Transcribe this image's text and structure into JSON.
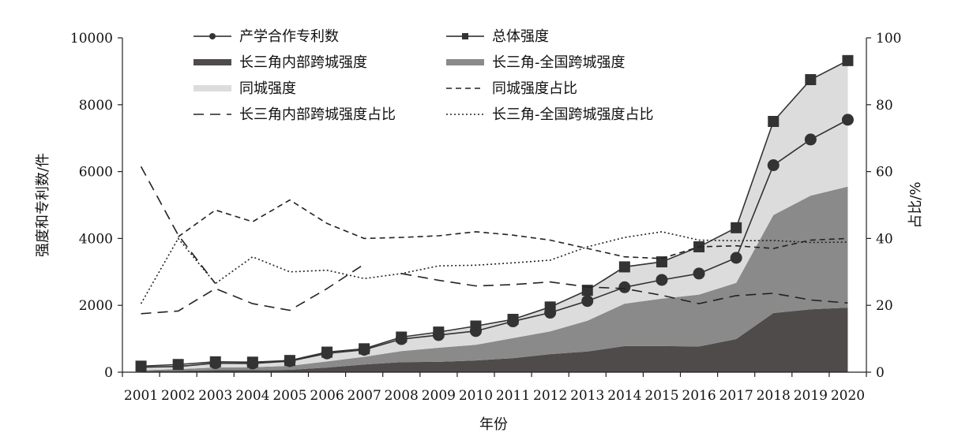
{
  "chart_data": {
    "type": "line",
    "categories": [
      "2001",
      "2002",
      "2003",
      "2004",
      "2005",
      "2006",
      "2007",
      "2008",
      "2009",
      "2010",
      "2011",
      "2012",
      "2013",
      "2014",
      "2015",
      "2016",
      "2017",
      "2018",
      "2019",
      "2020"
    ],
    "xlabel": "年份",
    "ylabel": "强度和专利数/件",
    "ylabel_right": "占比/%",
    "ylim": [
      0,
      10000
    ],
    "ylim_right": [
      0,
      100
    ],
    "yticks": [
      "0",
      "2000",
      "4000",
      "6000",
      "8000",
      "10000"
    ],
    "yticks_right": [
      "0",
      "20",
      "40",
      "60",
      "80",
      "100"
    ],
    "grid": false,
    "legend_position": "top",
    "series": [
      {
        "name": "产学合作专利数",
        "axis": "left",
        "style": "line-circle",
        "color": "#333333",
        "values": [
          150,
          170,
          270,
          260,
          330,
          560,
          670,
          990,
          1110,
          1230,
          1520,
          1780,
          2130,
          2540,
          2760,
          2950,
          3420,
          6190,
          6960,
          7550
        ]
      },
      {
        "name": "总体强度",
        "axis": "left",
        "style": "line-square",
        "color": "#333333",
        "values": [
          180,
          230,
          310,
          300,
          350,
          600,
          700,
          1050,
          1200,
          1380,
          1580,
          1950,
          2450,
          3150,
          3300,
          3750,
          4320,
          7500,
          8750,
          9320
        ]
      },
      {
        "name": "长三角内部跨城强度",
        "axis": "left",
        "style": "area",
        "color": "#4f4b4a",
        "values": [
          30,
          40,
          60,
          60,
          70,
          140,
          230,
          300,
          310,
          350,
          420,
          540,
          620,
          780,
          780,
          770,
          990,
          1770,
          1880,
          1930
        ]
      },
      {
        "name": "长三角-全国跨城强度",
        "axis": "left",
        "style": "area",
        "color": "#8a8a8a",
        "values": [
          30,
          50,
          80,
          90,
          120,
          180,
          230,
          330,
          420,
          470,
          600,
          680,
          920,
          1270,
          1420,
          1550,
          1680,
          2930,
          3400,
          3620
        ]
      },
      {
        "name": "同城强度",
        "axis": "left",
        "style": "area",
        "color": "#dcdcdc",
        "values": [
          120,
          140,
          170,
          150,
          160,
          280,
          240,
          420,
          470,
          560,
          560,
          730,
          910,
          1100,
          1100,
          1430,
          1650,
          2800,
          3470,
          3770
        ]
      },
      {
        "name": "同城强度占比",
        "axis": "right",
        "style": "dash-short",
        "color": "#222222",
        "values": [
          null,
          40.5,
          48.5,
          45,
          51.5,
          44.5,
          40,
          40.3,
          40.8,
          42,
          41,
          39.5,
          37,
          34.5,
          34,
          37.5,
          37.8,
          37,
          39.5,
          40
        ]
      },
      {
        "name": "长三角内部跨城强度占比",
        "axis": "right",
        "style": "dash-long",
        "color": "#222222",
        "values": [
          61.5,
          41,
          26.5,
          null,
          null,
          null,
          null,
          29.5,
          27.5,
          25.8,
          26.2,
          27,
          25.5,
          25,
          23,
          20.5,
          22.9,
          23.6,
          21.6,
          20.7
        ]
      },
      {
        "name": "长三角-全国跨城强度占比",
        "axis": "right",
        "style": "dotted",
        "color": "#222222",
        "values": [
          20.5,
          40,
          26.5,
          34.5,
          30,
          30.5,
          28,
          29.5,
          31.8,
          32,
          32.7,
          33.5,
          37.5,
          40.3,
          42,
          39.5,
          39.3,
          39.4,
          38.8,
          38.9
        ]
      },
      {
        "name": "",
        "axis": "right",
        "style": "dash-long",
        "color": "#222222",
        "values": [
          17.5,
          18.3,
          25,
          20.5,
          18.5,
          25,
          32.3,
          null,
          null,
          null,
          null,
          null,
          null,
          null,
          null,
          null,
          null,
          null,
          null,
          null
        ]
      }
    ]
  }
}
